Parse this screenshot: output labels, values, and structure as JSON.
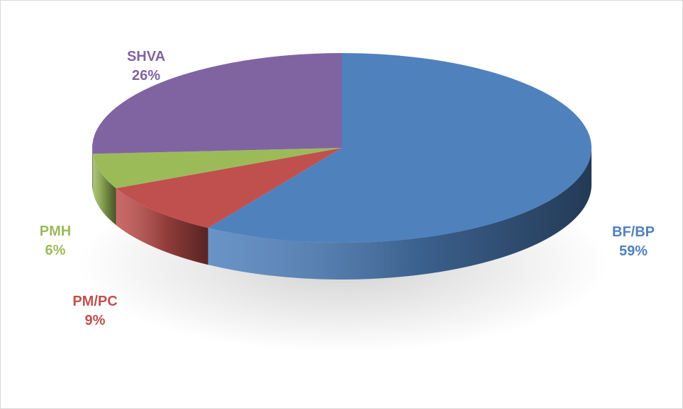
{
  "chart_data": {
    "type": "pie",
    "title": "",
    "slices": [
      {
        "name": "BF/BP",
        "value": 59,
        "value_label": "59%",
        "color": "#4f81bd"
      },
      {
        "name": "PM/PC",
        "value": 9,
        "value_label": "9%",
        "color": "#c0504d"
      },
      {
        "name": "PMH",
        "value": 6,
        "value_label": "6%",
        "color": "#9bbb59"
      },
      {
        "name": "SHVA",
        "value": 26,
        "value_label": "26%",
        "color": "#8064a2"
      }
    ],
    "style": "3d",
    "labels": "outside-category-and-percent"
  }
}
